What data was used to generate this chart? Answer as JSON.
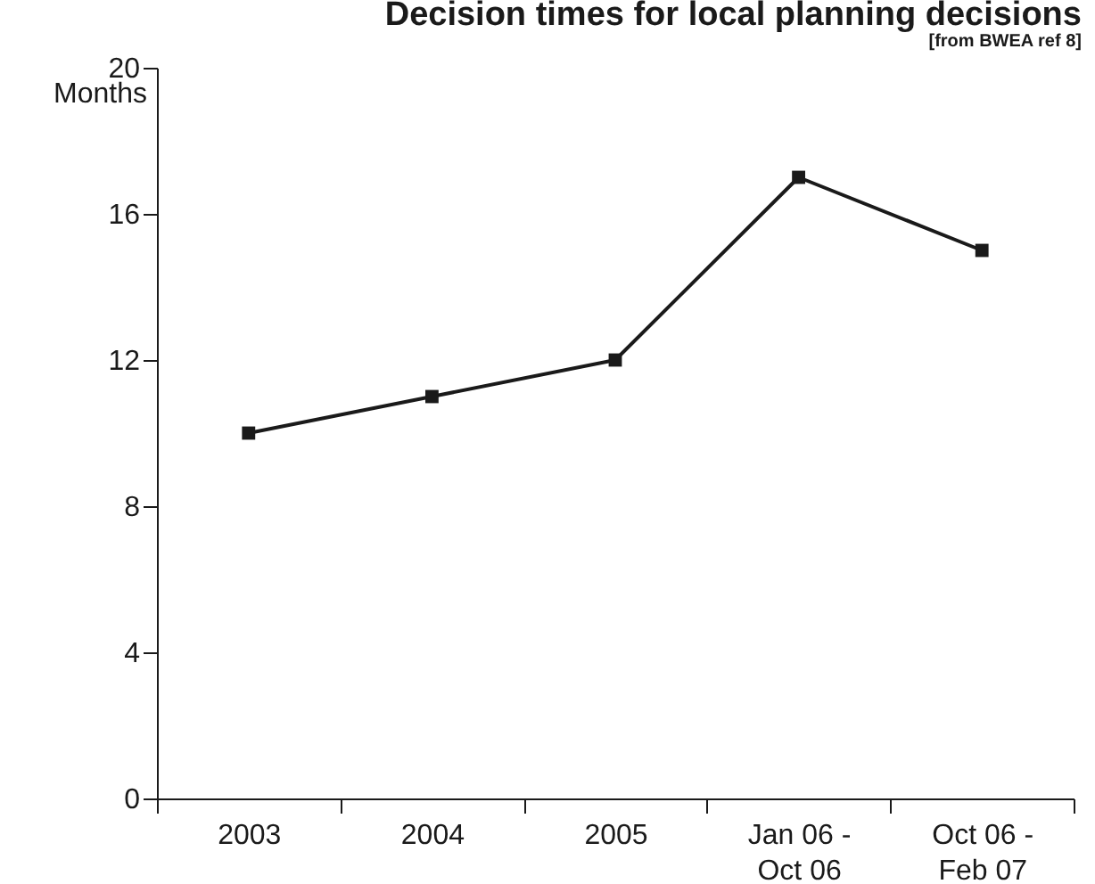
{
  "chart_data": {
    "type": "line",
    "title": "Decision times for local planning decisions",
    "subtitle": "[from BWEA ref 8]",
    "ylabel": "Months",
    "categories": [
      "2003",
      "2004",
      "2005",
      "Jan 06 - Oct 06",
      "Oct 06 - Feb 07"
    ],
    "series": [
      {
        "color": "#1a1a1a",
        "values": [
          10,
          11,
          12,
          17,
          15
        ]
      }
    ],
    "ylim": [
      0,
      20
    ],
    "yticks": [
      0,
      4,
      8,
      12,
      16,
      20
    ],
    "grid": false,
    "legend": false,
    "marker": "square",
    "line_style": "solid"
  }
}
